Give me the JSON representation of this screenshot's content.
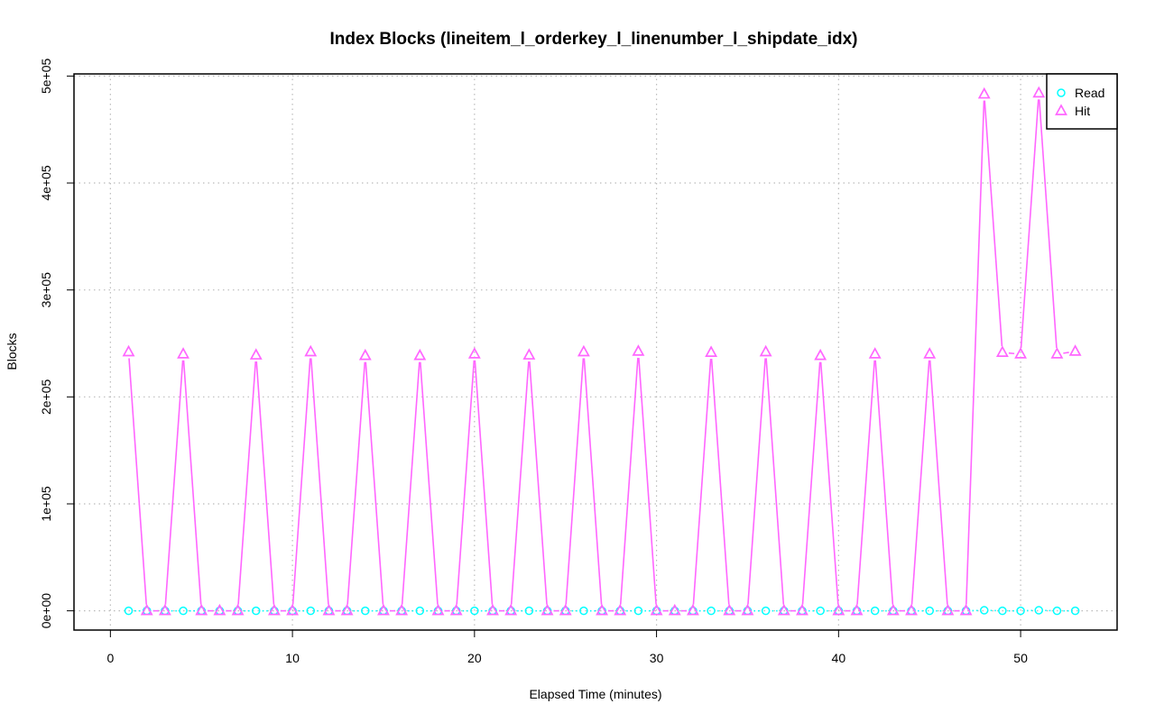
{
  "chart_data": {
    "type": "line",
    "title": "Index Blocks (lineitem_l_orderkey_l_linenumber_l_shipdate_idx)",
    "xlabel": "Elapsed Time (minutes)",
    "ylabel": "Blocks",
    "xlim": [
      -2,
      55.3
    ],
    "ylim": [
      -18000,
      502000
    ],
    "x_ticks": [
      0,
      10,
      20,
      30,
      40,
      50
    ],
    "x_tick_labels": [
      "0",
      "10",
      "20",
      "30",
      "40",
      "50"
    ],
    "y_ticks": [
      0,
      100000,
      200000,
      300000,
      400000,
      500000
    ],
    "y_tick_labels": [
      "0e+00",
      "1e+05",
      "2e+05",
      "3e+05",
      "4e+05",
      "5e+05"
    ],
    "grid": true,
    "legend_position": "top-right",
    "x": [
      1,
      2,
      3,
      4,
      5,
      6,
      7,
      8,
      9,
      10,
      11,
      12,
      13,
      14,
      15,
      16,
      17,
      18,
      19,
      20,
      21,
      22,
      23,
      24,
      25,
      26,
      27,
      28,
      29,
      30,
      31,
      32,
      33,
      34,
      35,
      36,
      37,
      38,
      39,
      40,
      41,
      42,
      43,
      44,
      45,
      46,
      47,
      48,
      49,
      50,
      51,
      52,
      53
    ],
    "series": [
      {
        "name": "Read",
        "color": "#00FFFF",
        "marker": "circle",
        "line_style": "dotted",
        "values": [
          0,
          0,
          0,
          0,
          0,
          0,
          0,
          0,
          0,
          0,
          0,
          0,
          0,
          0,
          0,
          0,
          0,
          0,
          0,
          0,
          0,
          0,
          0,
          0,
          0,
          0,
          0,
          0,
          0,
          0,
          0,
          0,
          0,
          0,
          0,
          0,
          0,
          0,
          0,
          0,
          0,
          0,
          0,
          0,
          0,
          0,
          0,
          500,
          0,
          0,
          500,
          0,
          0
        ]
      },
      {
        "name": "Hit",
        "color": "#FF66FF",
        "marker": "triangle",
        "line_style": "solid",
        "values": [
          242000,
          0,
          0,
          240000,
          0,
          0,
          0,
          239000,
          0,
          0,
          242000,
          0,
          0,
          238500,
          0,
          0,
          238500,
          0,
          0,
          240000,
          0,
          0,
          239000,
          0,
          0,
          242000,
          0,
          0,
          242500,
          0,
          0,
          0,
          241500,
          0,
          0,
          242000,
          0,
          0,
          238500,
          0,
          0,
          240000,
          0,
          0,
          240000,
          0,
          0,
          483000,
          241500,
          240000,
          484000,
          240000,
          242500
        ]
      }
    ]
  }
}
